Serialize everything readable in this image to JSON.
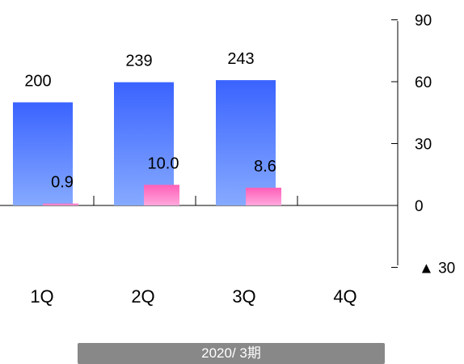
{
  "chart_data": {
    "type": "bar",
    "categories": [
      "1Q",
      "2Q",
      "3Q",
      "4Q"
    ],
    "series": [
      {
        "axis": "left",
        "color": "#4a7bff",
        "values": [
          200,
          239,
          243,
          null
        ],
        "labels": [
          "200",
          "239",
          "243",
          ""
        ]
      },
      {
        "axis": "right",
        "color": "#ff70c0",
        "values": [
          0.9,
          10.0,
          8.6,
          null
        ],
        "labels": [
          "0.9",
          "10.0",
          "8.6",
          ""
        ]
      }
    ],
    "right_axis": {
      "ylim": [
        -30,
        90
      ],
      "ticks": [
        {
          "value": 90,
          "label": "90"
        },
        {
          "value": 60,
          "label": "60"
        },
        {
          "value": 30,
          "label": "30"
        },
        {
          "value": 0,
          "label": "0"
        },
        {
          "value": -30,
          "label": "▲ 30"
        }
      ]
    },
    "left_axis": {
      "ylim": [
        -100,
        300
      ]
    },
    "grid": false,
    "period_label": "2020/ 3期"
  }
}
